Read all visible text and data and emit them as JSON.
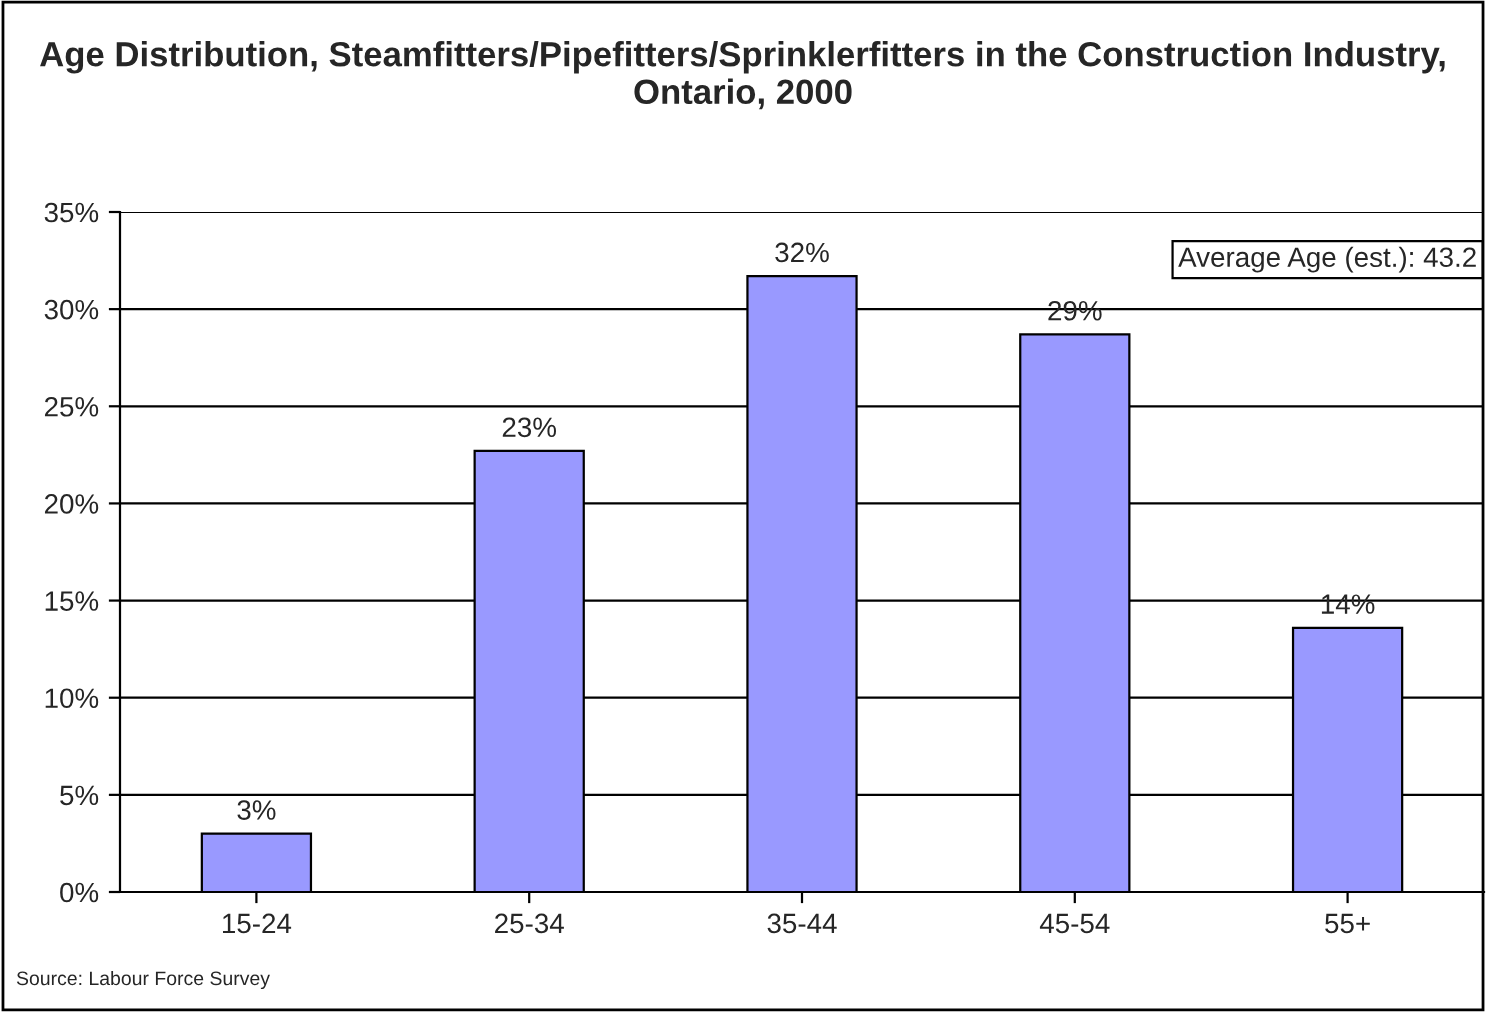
{
  "chart_data": {
    "type": "bar",
    "title": "Age Distribution, Steamfitters/Pipefitters/Sprinklerfitters in the Construction Industry, Ontario, 2000",
    "categories": [
      "15-24",
      "25-34",
      "35-44",
      "45-54",
      "55+"
    ],
    "values": [
      3.0,
      22.7,
      31.7,
      28.7,
      13.6
    ],
    "value_labels": [
      "3%",
      "23%",
      "32%",
      "29%",
      "14%"
    ],
    "color": "#9999ff",
    "ylim": [
      0,
      35
    ],
    "yticks": [
      {
        "value": 0,
        "label": "0%"
      },
      {
        "value": 5,
        "label": "5%"
      },
      {
        "value": 10,
        "label": "10%"
      },
      {
        "value": 15,
        "label": "15%"
      },
      {
        "value": 20,
        "label": "20%"
      },
      {
        "value": 25,
        "label": "25%"
      },
      {
        "value": 30,
        "label": "30%"
      },
      {
        "value": 35,
        "label": "35%"
      }
    ],
    "grid": "y",
    "annotations": [
      "Average Age (est.): 43.2",
      "Source: Labour Force Survey"
    ]
  }
}
